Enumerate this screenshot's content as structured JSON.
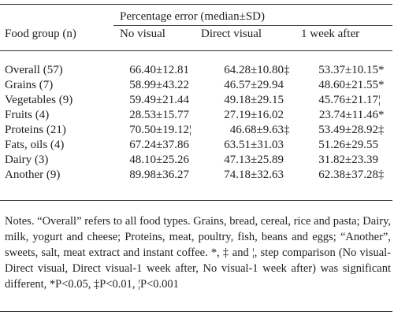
{
  "table": {
    "span_header": "Percentage error (median±SD)",
    "columns": [
      "Food group (n)",
      "No visual",
      "Direct visual",
      "1 week after"
    ],
    "rows": [
      {
        "group": "Overall (57)",
        "no_visual": "66.40±12.81",
        "no_visual_mark": "",
        "direct": "64.28±10.80",
        "direct_mark": "‡",
        "week": "53.37±10.15",
        "week_mark": "*"
      },
      {
        "group": "Grains (7)",
        "no_visual": "58.99±43.22",
        "no_visual_mark": "",
        "direct": "46.57±29.94",
        "direct_mark": "",
        "week": "48.60±21.55",
        "week_mark": "*"
      },
      {
        "group": "Vegetables (9)",
        "no_visual": "59.49±21.44",
        "no_visual_mark": "",
        "direct": "49.18±29.15",
        "direct_mark": "",
        "week": "45.76±21.17",
        "week_mark": "¦"
      },
      {
        "group": "Fruits (4)",
        "no_visual": "28.53±15.77",
        "no_visual_mark": "",
        "direct": "27.19±16.02",
        "direct_mark": "",
        "week": "23.74±11.46",
        "week_mark": "*"
      },
      {
        "group": "Proteins (21)",
        "no_visual": "70.50±19.12",
        "no_visual_mark": "¦",
        "direct": "46.68±9.63",
        "direct_mark": "‡",
        "week": "53.49±28.92",
        "week_mark": "‡"
      },
      {
        "group": "Fats, oils (4)",
        "no_visual": "67.24±37.86",
        "no_visual_mark": "",
        "direct": "63.51±31.03",
        "direct_mark": "",
        "week": "51.26±29.55",
        "week_mark": ""
      },
      {
        "group": "Dairy (3)",
        "no_visual": "48.10±25.26",
        "no_visual_mark": "",
        "direct": "47.13±25.89",
        "direct_mark": "",
        "week": "31.82±23.39",
        "week_mark": ""
      },
      {
        "group": "Another (9)",
        "no_visual": "89.98±36.27",
        "no_visual_mark": "",
        "direct": "74.18±32.63",
        "direct_mark": "",
        "week": "62.38±37.28",
        "week_mark": "‡"
      }
    ]
  },
  "notes": "Notes. “Overall” refers to all food types. Grains, bread, cereal, rice and pasta; Dairy, milk, yogurt and cheese; Proteins, meat, poultry, fish, beans and eggs; “Another”, sweets, salt, meat extract and instant coffee. *, ‡ and ¦, step comparison (No visual-Direct visual, Direct visual-1 week after, No visual-1 week after) was significant different, *P<0.05, ‡P<0.01, ¦P<0.001"
}
